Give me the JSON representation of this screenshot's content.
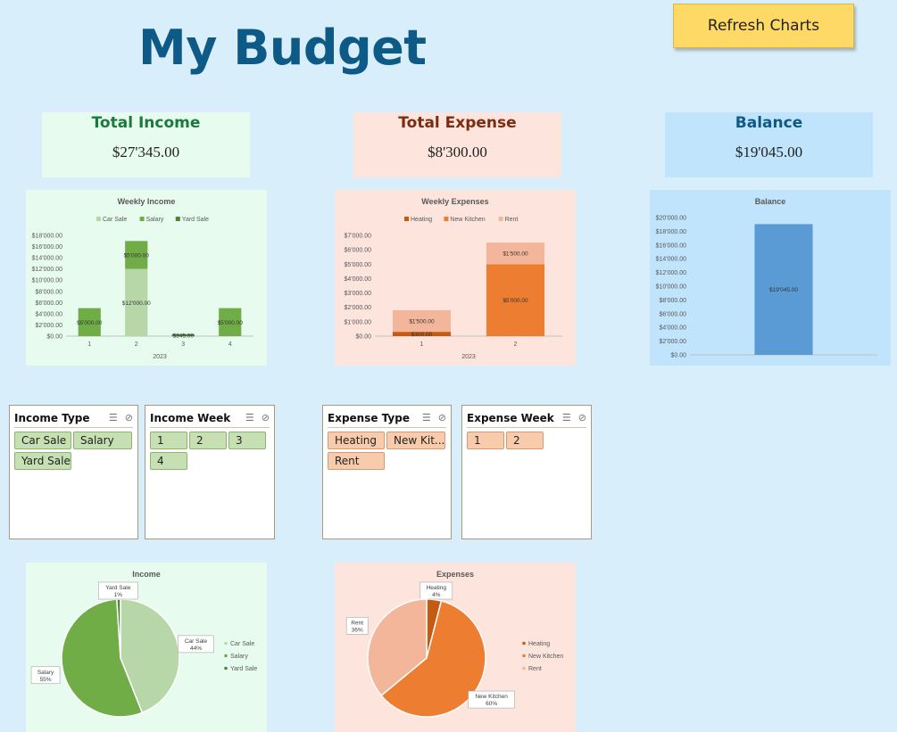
{
  "page": {
    "title": "My Budget",
    "refresh_label": "Refresh Charts"
  },
  "cards": {
    "income": {
      "label": "Total Income",
      "value": "$27'345.00",
      "bg": "#e8fbef",
      "color": "#1a7a3c"
    },
    "expense": {
      "label": "Total Expense",
      "value": "$8'300.00",
      "bg": "#fde4dc",
      "color": "#7b2c10"
    },
    "balance": {
      "label": "Balance",
      "value": "$19'045.00",
      "bg": "#bfe4fb",
      "color": "#0e5a86"
    }
  },
  "chart_data": [
    {
      "type": "bar",
      "stacked": true,
      "title": "Weekly Income",
      "xlabel": "2023",
      "categories": [
        "1",
        "2",
        "3",
        "4"
      ],
      "ylim": [
        0,
        18000
      ],
      "yticks": [
        "$0.00",
        "$2'000.00",
        "$4'000.00",
        "$6'000.00",
        "$8'000.00",
        "$10'000.00",
        "$12'000.00",
        "$14'000.00",
        "$16'000.00",
        "$18'000.00"
      ],
      "legend_position": "top",
      "series": [
        {
          "name": "Car Sale",
          "values": [
            0,
            12000,
            0,
            0
          ],
          "labels": [
            "",
            "$12'000.00",
            "",
            ""
          ],
          "color": "#b7d7a8"
        },
        {
          "name": "Salary",
          "values": [
            5000,
            5000,
            0,
            5000
          ],
          "labels": [
            "$5'000.00",
            "$5'000.00",
            "",
            "$5'000.00"
          ],
          "color": "#70ad47"
        },
        {
          "name": "Yard Sale",
          "values": [
            0,
            0,
            345,
            0
          ],
          "labels": [
            "",
            "",
            "$345.00",
            ""
          ],
          "color": "#548235"
        }
      ]
    },
    {
      "type": "bar",
      "stacked": true,
      "title": "Weekly Expenses",
      "xlabel": "2023",
      "categories": [
        "1",
        "2"
      ],
      "ylim": [
        0,
        7000
      ],
      "yticks": [
        "$0.00",
        "$1'000.00",
        "$2'000.00",
        "$3'000.00",
        "$4'000.00",
        "$5'000.00",
        "$6'000.00",
        "$7'000.00"
      ],
      "legend_position": "top",
      "series": [
        {
          "name": "Heating",
          "values": [
            300,
            0
          ],
          "labels": [
            "$300.00",
            ""
          ],
          "color": "#c55a11"
        },
        {
          "name": "New Kitchen",
          "values": [
            0,
            5000
          ],
          "labels": [
            "",
            "$5'000.00"
          ],
          "color": "#ed7d31"
        },
        {
          "name": "Rent",
          "values": [
            1500,
            1500
          ],
          "labels": [
            "$1'500.00",
            "$1'500.00"
          ],
          "color": "#f4b69a"
        }
      ]
    },
    {
      "type": "bar",
      "title": "Balance",
      "categories": [
        ""
      ],
      "values": [
        19045
      ],
      "labels": [
        "$19'045.00"
      ],
      "ylim": [
        0,
        20000
      ],
      "yticks": [
        "$0.00",
        "$2'000.00",
        "$4'000.00",
        "$6'000.00",
        "$8'000.00",
        "$10'000.00",
        "$12'000.00",
        "$14'000.00",
        "$16'000.00",
        "$18'000.00",
        "$20'000.00"
      ],
      "color": "#5b9bd5"
    },
    {
      "type": "pie",
      "title": "Income",
      "legend_position": "right",
      "slices": [
        {
          "name": "Car Sale",
          "value": 44,
          "label": "Car Sale\n44%",
          "color": "#b7d7a8"
        },
        {
          "name": "Salary",
          "value": 55,
          "label": "Salary\n55%",
          "color": "#70ad47"
        },
        {
          "name": "Yard Sale",
          "value": 1,
          "label": "Yard Sale\n1%",
          "color": "#548235"
        }
      ]
    },
    {
      "type": "pie",
      "title": "Expenses",
      "legend_position": "right",
      "slices": [
        {
          "name": "Heating",
          "value": 4,
          "label": "Heating\n4%",
          "color": "#c55a11"
        },
        {
          "name": "New Kitchen",
          "value": 60,
          "label": "New Kitchen\n60%",
          "color": "#ed7d31"
        },
        {
          "name": "Rent",
          "value": 36,
          "label": "Rent\n36%",
          "color": "#f4b69a"
        }
      ]
    }
  ],
  "slicers": {
    "income_type": {
      "title": "Income Type",
      "items": [
        "Car Sale",
        "Salary",
        "Yard Sale"
      ]
    },
    "income_week": {
      "title": "Income Week",
      "items": [
        "1",
        "2",
        "3",
        "4"
      ]
    },
    "expense_type": {
      "title": "Expense Type",
      "items": [
        "Heating",
        "New Kit...",
        "Rent"
      ]
    },
    "expense_week": {
      "title": "Expense Week",
      "items": [
        "1",
        "2"
      ]
    }
  },
  "icons": {
    "multi_select": "multi-select-icon",
    "clear_filter": "clear-filter-icon"
  }
}
